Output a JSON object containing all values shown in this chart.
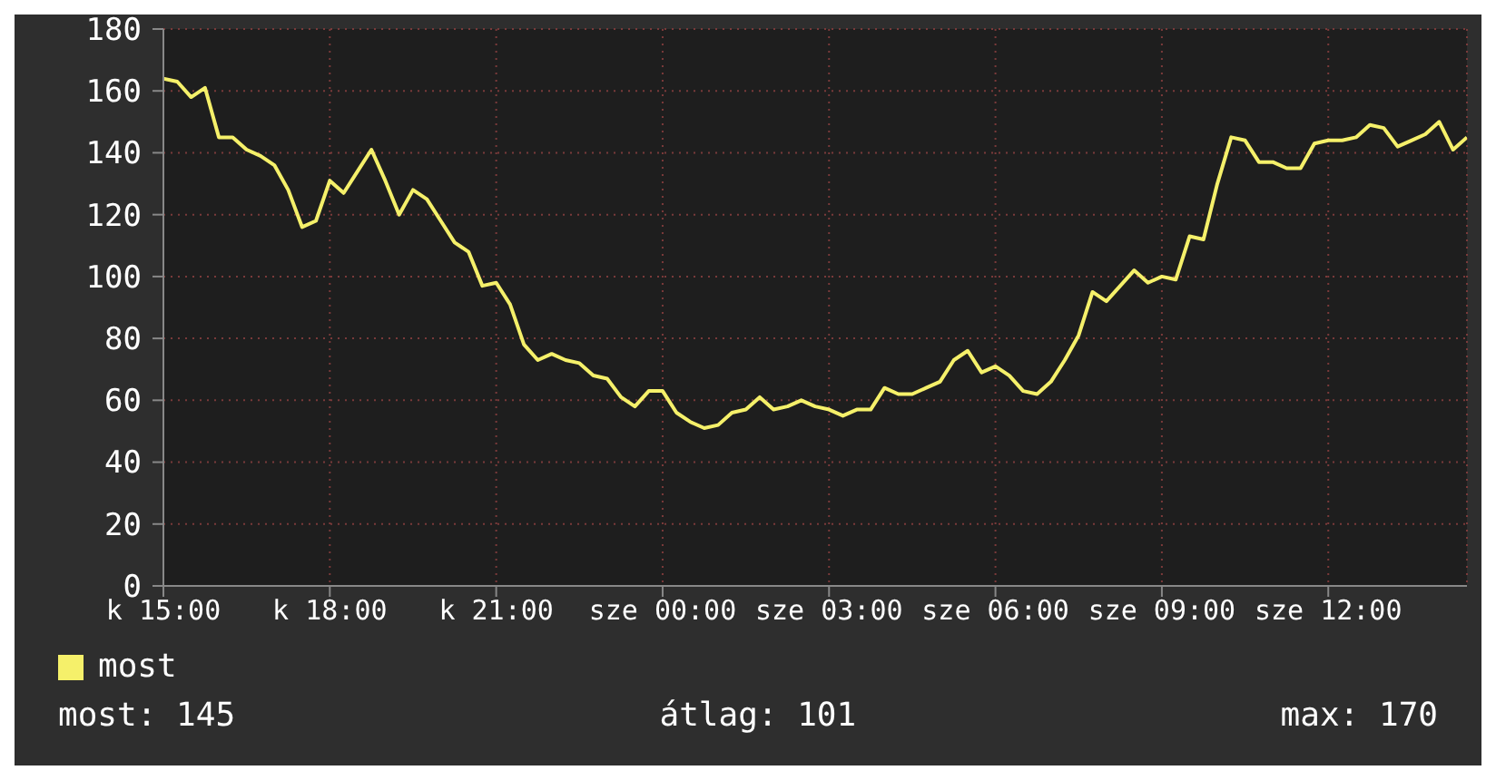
{
  "chart_data": {
    "type": "line",
    "categories": [
      "k 15:00",
      null,
      null,
      null,
      null,
      null,
      null,
      null,
      null,
      null,
      null,
      null,
      "k 18:00",
      null,
      null,
      null,
      null,
      null,
      null,
      null,
      null,
      null,
      null,
      null,
      "k 21:00",
      null,
      null,
      null,
      null,
      null,
      null,
      null,
      null,
      null,
      null,
      null,
      "sze 00:00",
      null,
      null,
      null,
      null,
      null,
      null,
      null,
      null,
      null,
      null,
      null,
      "sze 03:00",
      null,
      null,
      null,
      null,
      null,
      null,
      null,
      null,
      null,
      null,
      null,
      "sze 06:00",
      null,
      null,
      null,
      null,
      null,
      null,
      null,
      null,
      null,
      null,
      null,
      "sze 09:00",
      null,
      null,
      null,
      null,
      null,
      null,
      null,
      null,
      null,
      null,
      null,
      "sze 12:00",
      null,
      null,
      null,
      null,
      null,
      null,
      null,
      null,
      null,
      null
    ],
    "series": [
      {
        "name": "most",
        "color": "#f5f06a",
        "values": [
          164,
          163,
          158,
          161,
          145,
          145,
          141,
          139,
          136,
          128,
          116,
          118,
          131,
          127,
          134,
          141,
          131,
          120,
          128,
          125,
          118,
          111,
          108,
          97,
          98,
          91,
          78,
          73,
          75,
          73,
          72,
          68,
          67,
          61,
          58,
          63,
          63,
          56,
          53,
          51,
          52,
          56,
          57,
          61,
          57,
          58,
          60,
          58,
          57,
          55,
          57,
          57,
          64,
          62,
          62,
          64,
          66,
          73,
          76,
          69,
          71,
          68,
          63,
          62,
          66,
          73,
          81,
          95,
          92,
          97,
          102,
          98,
          100,
          99,
          113,
          112,
          130,
          145,
          144,
          137,
          137,
          135,
          135,
          143,
          144,
          144,
          145,
          149,
          148,
          142,
          144,
          146,
          150,
          141,
          145
        ]
      }
    ],
    "ylim": [
      0,
      180
    ],
    "yticks": [
      0,
      20,
      40,
      60,
      80,
      100,
      120,
      140,
      160,
      180
    ],
    "grid": true,
    "legend": "bottom left",
    "marker": "none",
    "line_style": "solid",
    "annotations": [
      "most: 145",
      "átlag: 101",
      "max: 170"
    ]
  }
}
